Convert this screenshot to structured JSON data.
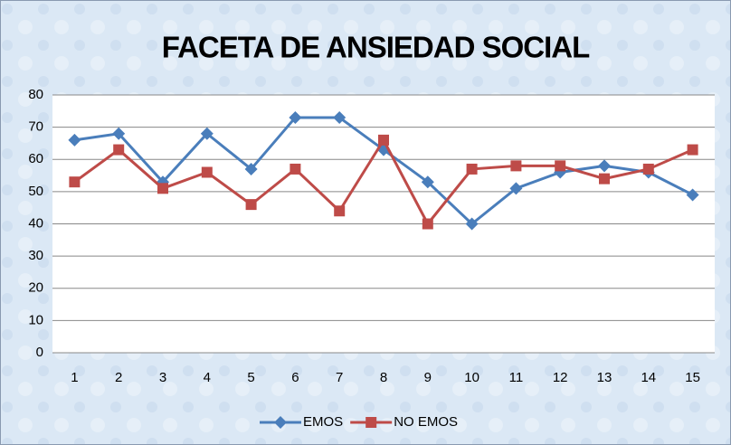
{
  "chart_data": {
    "type": "line",
    "title": "FACETA DE ANSIEDAD SOCIAL",
    "categories": [
      "1",
      "2",
      "3",
      "4",
      "5",
      "6",
      "7",
      "8",
      "9",
      "10",
      "11",
      "12",
      "13",
      "14",
      "15"
    ],
    "series": [
      {
        "name": "EMOS",
        "color": "#4a7ebb",
        "marker": "diamond",
        "values": [
          66,
          68,
          53,
          68,
          57,
          73,
          73,
          63,
          53,
          40,
          51,
          56,
          58,
          56,
          49
        ]
      },
      {
        "name": "NO EMOS",
        "color": "#be4b48",
        "marker": "square",
        "values": [
          53,
          63,
          51,
          56,
          46,
          57,
          44,
          66,
          40,
          57,
          58,
          58,
          54,
          57,
          63
        ]
      }
    ],
    "ylim": [
      0,
      80
    ],
    "yticks": [
      0,
      10,
      20,
      30,
      40,
      50,
      60,
      70,
      80
    ],
    "grid": true,
    "legend": "bottom"
  }
}
